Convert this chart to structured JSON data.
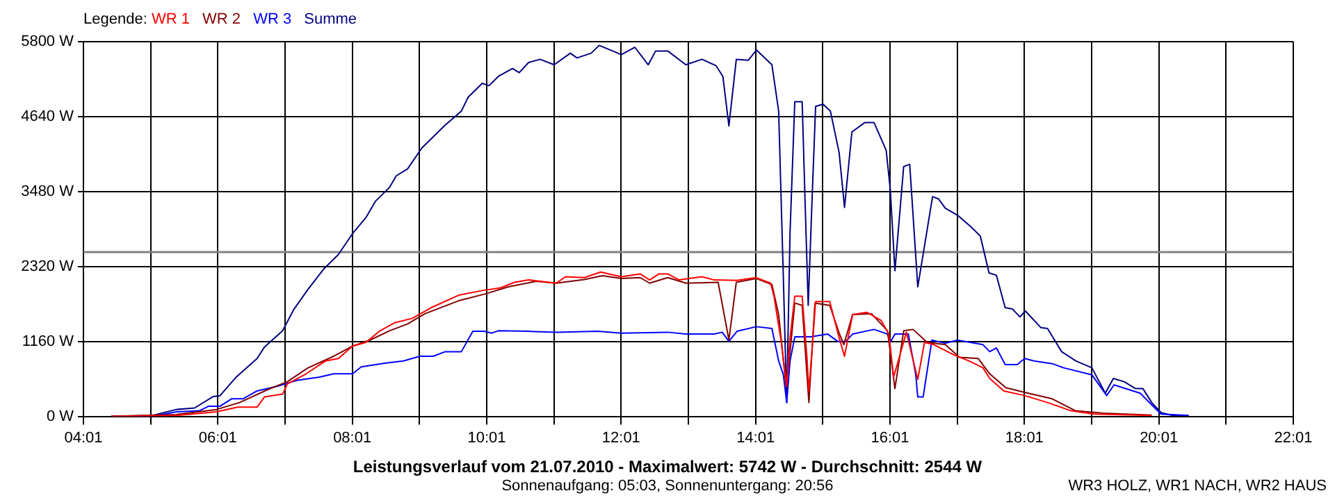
{
  "chart_data": {
    "type": "line",
    "title": "Leistungsverlauf vom 21.07.2010 - Maximalwert: 5742 W - Durchschnitt: 2544 W",
    "subtitle": "Sonnenaufgang: 05:03, Sonnenuntergang: 20:56",
    "annotations": [
      "WR3 HOLZ, WR1 NACH, WR2 HAUS"
    ],
    "legend_title": "Legende:",
    "legend": "top left",
    "grid": true,
    "xlim": [
      4.0167,
      22.0167
    ],
    "xticks": [
      {
        "value": 4.0167,
        "label": "04:01"
      },
      {
        "value": 5.0167,
        "label": null
      },
      {
        "value": 6.0167,
        "label": "06:01"
      },
      {
        "value": 7.0167,
        "label": null
      },
      {
        "value": 8.0167,
        "label": "08:01"
      },
      {
        "value": 9.0167,
        "label": null
      },
      {
        "value": 10.0167,
        "label": "10:01"
      },
      {
        "value": 11.0167,
        "label": null
      },
      {
        "value": 12.0167,
        "label": "12:01"
      },
      {
        "value": 13.0167,
        "label": null
      },
      {
        "value": 14.0167,
        "label": "14:01"
      },
      {
        "value": 15.0167,
        "label": null
      },
      {
        "value": 16.0167,
        "label": "16:01"
      },
      {
        "value": 17.0167,
        "label": null
      },
      {
        "value": 18.0167,
        "label": "18:01"
      },
      {
        "value": 19.0167,
        "label": null
      },
      {
        "value": 20.0167,
        "label": "20:01"
      },
      {
        "value": 21.0167,
        "label": null
      },
      {
        "value": 22.0167,
        "label": "22:01"
      }
    ],
    "ylim": [
      0,
      5800
    ],
    "yticks": [
      {
        "value": 0,
        "label": "0 W"
      },
      {
        "value": 1160,
        "label": "1160 W"
      },
      {
        "value": 2320,
        "label": "2320 W"
      },
      {
        "value": 3480,
        "label": "3480 W"
      },
      {
        "value": 4640,
        "label": "4640 W"
      },
      {
        "value": 5800,
        "label": "5800 W"
      }
    ],
    "ref_lines": [
      {
        "axis": "y",
        "value": 2544,
        "color": "#808080"
      }
    ],
    "series": [
      {
        "name": "WR 1",
        "color": "#ff0000",
        "x": [
          4.43,
          5.4,
          6.0,
          6.31,
          6.6,
          6.71,
          6.98,
          7.05,
          7.33,
          7.62,
          7.81,
          8.02,
          8.22,
          8.43,
          8.64,
          8.91,
          9.19,
          9.6,
          9.95,
          10.22,
          10.43,
          10.64,
          11.05,
          11.19,
          11.47,
          11.71,
          12.02,
          12.3,
          12.44,
          12.58,
          12.71,
          12.88,
          13.22,
          13.4,
          13.74,
          14.02,
          14.24,
          14.29,
          14.4,
          14.48,
          14.53,
          14.6,
          14.71,
          14.78,
          14.81,
          14.91,
          15.12,
          15.26,
          15.34,
          15.46,
          15.67,
          15.88,
          16.0,
          16.07,
          16.15,
          16.26,
          16.43,
          16.53,
          16.67,
          16.98,
          17.19,
          17.4,
          17.5,
          17.71,
          18.02,
          18.36,
          18.71,
          19.05,
          19.91
        ],
        "values": [
          0,
          14,
          72,
          143,
          143,
          301,
          344,
          501,
          659,
          859,
          895,
          1088,
          1146,
          1325,
          1446,
          1518,
          1683,
          1876,
          1948,
          1990,
          2076,
          2112,
          2062,
          2162,
          2148,
          2234,
          2162,
          2205,
          2112,
          2205,
          2205,
          2112,
          2162,
          2112,
          2105,
          2148,
          2062,
          1861,
          1146,
          465,
          1217,
          1861,
          1861,
          931,
          394,
          1776,
          1776,
          1217,
          931,
          1575,
          1611,
          1489,
          1274,
          609,
          895,
          1303,
          573,
          1146,
          1110,
          945,
          859,
          752,
          587,
          394,
          322,
          215,
          86,
          36,
          14
        ]
      },
      {
        "name": "WR 2",
        "color": "#800000",
        "x": [
          4.43,
          5.4,
          6.0,
          6.34,
          6.76,
          7.05,
          7.36,
          7.74,
          8.02,
          8.28,
          8.57,
          8.84,
          9.1,
          9.6,
          10.0,
          10.34,
          10.75,
          11.05,
          11.47,
          11.74,
          12.02,
          12.3,
          12.44,
          12.71,
          12.98,
          13.46,
          13.55,
          13.62,
          13.73,
          14.03,
          14.26,
          14.36,
          14.47,
          14.53,
          14.6,
          14.71,
          14.81,
          14.9,
          15.12,
          15.26,
          15.33,
          15.46,
          15.74,
          15.98,
          16.09,
          16.22,
          16.36,
          16.57,
          16.84,
          17.05,
          17.33,
          17.5,
          17.74,
          18.02,
          18.43,
          18.78,
          19.19,
          19.91
        ],
        "values": [
          0,
          29,
          107,
          215,
          415,
          537,
          752,
          931,
          1088,
          1181,
          1325,
          1432,
          1590,
          1790,
          1897,
          2005,
          2091,
          2062,
          2119,
          2177,
          2134,
          2148,
          2062,
          2148,
          2062,
          2076,
          1575,
          1181,
          2076,
          2134,
          2041,
          1575,
          465,
          1002,
          1754,
          1718,
          215,
          1754,
          1718,
          1289,
          1110,
          1575,
          1590,
          1325,
          430,
          1325,
          1346,
          1146,
          1110,
          916,
          895,
          659,
          444,
          372,
          272,
          86,
          50,
          21
        ]
      },
      {
        "name": "WR 3",
        "color": "#0000ff",
        "x": [
          4.43,
          5.05,
          5.4,
          5.74,
          5.88,
          6.05,
          6.22,
          6.39,
          6.6,
          6.9,
          7.19,
          7.53,
          7.74,
          8.02,
          8.15,
          8.5,
          8.78,
          9.02,
          9.22,
          9.4,
          9.64,
          9.81,
          9.98,
          10.09,
          10.19,
          10.64,
          11.05,
          11.67,
          12.02,
          12.71,
          12.98,
          13.4,
          13.52,
          13.62,
          13.74,
          14.03,
          14.26,
          14.36,
          14.43,
          14.48,
          14.53,
          14.6,
          14.84,
          15.09,
          15.24,
          15.36,
          15.46,
          15.78,
          15.98,
          16.02,
          16.09,
          16.29,
          16.4,
          16.43,
          16.51,
          16.64,
          16.84,
          17.02,
          17.4,
          17.5,
          17.6,
          17.73,
          17.91,
          18.02,
          18.16,
          18.43,
          18.6,
          19.02,
          19.24,
          19.35,
          19.74,
          19.91,
          20.05,
          20.46
        ],
        "values": [
          0,
          0,
          72,
          86,
          158,
          158,
          272,
          272,
          394,
          465,
          558,
          609,
          659,
          659,
          766,
          823,
          859,
          931,
          931,
          1002,
          1002,
          1317,
          1317,
          1289,
          1325,
          1317,
          1303,
          1317,
          1289,
          1303,
          1274,
          1274,
          1303,
          1160,
          1317,
          1389,
          1360,
          859,
          644,
          215,
          859,
          1231,
          1231,
          1274,
          1160,
          1160,
          1274,
          1346,
          1274,
          1146,
          1274,
          1274,
          644,
          301,
          301,
          1181,
          1131,
          1181,
          1110,
          1002,
          1060,
          802,
          802,
          895,
          859,
          816,
          752,
          644,
          322,
          487,
          358,
          179,
          36,
          14
        ]
      },
      {
        "name": "Summe",
        "color": "#000080",
        "x": [
          4.43,
          5.05,
          5.4,
          5.67,
          5.95,
          6.05,
          6.29,
          6.6,
          6.71,
          6.98,
          7.15,
          7.36,
          7.6,
          7.81,
          8.02,
          8.22,
          8.36,
          8.57,
          8.67,
          8.84,
          9.05,
          9.4,
          9.64,
          9.74,
          9.95,
          10.05,
          10.19,
          10.4,
          10.5,
          10.64,
          10.81,
          11.02,
          11.26,
          11.36,
          11.57,
          11.69,
          12.02,
          12.22,
          12.42,
          12.53,
          12.71,
          12.98,
          13.22,
          13.43,
          13.53,
          13.62,
          13.73,
          13.91,
          14.03,
          14.26,
          14.36,
          14.43,
          14.48,
          14.53,
          14.6,
          14.71,
          14.75,
          14.8,
          14.86,
          14.91,
          15.02,
          15.13,
          15.26,
          15.34,
          15.45,
          15.64,
          15.78,
          15.96,
          16.02,
          16.09,
          16.22,
          16.31,
          16.43,
          16.65,
          16.74,
          16.84,
          17.02,
          17.22,
          17.36,
          17.49,
          17.6,
          17.73,
          17.84,
          17.95,
          18.03,
          18.26,
          18.36,
          18.57,
          18.78,
          19.02,
          19.22,
          19.34,
          19.5,
          19.67,
          19.78,
          19.91,
          20.05,
          20.22,
          20.46
        ],
        "values": [
          0,
          15,
          107,
          130,
          308,
          322,
          609,
          895,
          1074,
          1325,
          1661,
          1969,
          2291,
          2506,
          2828,
          3079,
          3329,
          3544,
          3723,
          3831,
          4153,
          4511,
          4726,
          4940,
          5155,
          5119,
          5263,
          5384,
          5320,
          5477,
          5527,
          5442,
          5621,
          5549,
          5621,
          5742,
          5599,
          5714,
          5442,
          5656,
          5656,
          5442,
          5527,
          5427,
          5263,
          4496,
          5527,
          5513,
          5671,
          5442,
          4726,
          2148,
          215,
          2864,
          4869,
          4869,
          3437,
          1718,
          3437,
          4797,
          4833,
          4726,
          4082,
          3236,
          4403,
          4547,
          4547,
          4117,
          3523,
          2255,
          3866,
          3902,
          2005,
          3401,
          3365,
          3222,
          3115,
          2936,
          2792,
          2220,
          2184,
          1683,
          1661,
          1539,
          1632,
          1375,
          1360,
          1002,
          859,
          752,
          358,
          587,
          537,
          430,
          430,
          215,
          57,
          14,
          14
        ]
      }
    ]
  }
}
